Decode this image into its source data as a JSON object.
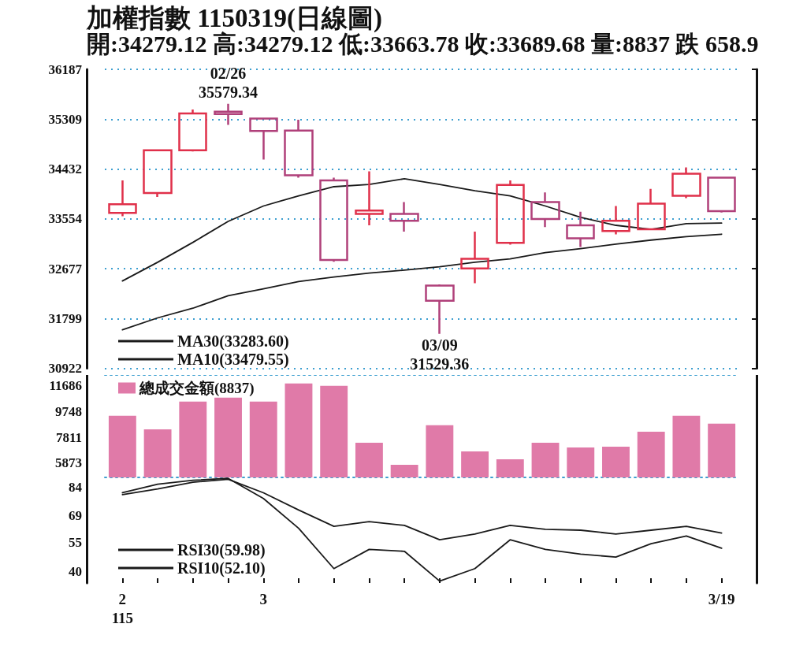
{
  "chart_data": [
    {
      "type": "candlestick",
      "title": "加權指數 1150319(日線圖)",
      "subtitle": "開:34279.12 高:34279.12 低:33663.78 收:33689.68 量:8837 跌 658.9",
      "categories": [
        null,
        null,
        null,
        null,
        null,
        null,
        null,
        null,
        null,
        null,
        null,
        null,
        null,
        null,
        null,
        null,
        null,
        null
      ],
      "ohlc": [
        [
          33660,
          34230,
          33600,
          33810
        ],
        [
          34010,
          34770,
          33940,
          34760
        ],
        [
          34760,
          35480,
          34740,
          35410
        ],
        [
          35440,
          35579.34,
          35210,
          35400
        ],
        [
          35320,
          35330,
          34600,
          35100
        ],
        [
          35110,
          35300,
          34280,
          34320
        ],
        [
          34230,
          34280,
          32800,
          32830
        ],
        [
          33640,
          34390,
          33440,
          33700
        ],
        [
          33640,
          33850,
          33330,
          33520
        ],
        [
          32380,
          32400,
          31529.36,
          32110
        ],
        [
          32680,
          33330,
          32420,
          32850
        ],
        [
          33130,
          34230,
          33100,
          34150
        ],
        [
          33850,
          34020,
          33410,
          33550
        ],
        [
          33440,
          33680,
          33060,
          33210
        ],
        [
          33340,
          33780,
          33280,
          33520
        ],
        [
          33370,
          34080,
          33370,
          33820
        ],
        [
          33960,
          34460,
          33920,
          34348.58
        ],
        [
          34279.12,
          34279.12,
          33663.78,
          33689.68
        ]
      ],
      "colors": [
        "#e0304a",
        "#e0304a",
        "#e0304a",
        "#b0407a",
        "#b0407a",
        "#b0407a",
        "#b0407a",
        "#e0304a",
        "#b0407a",
        "#b0407a",
        "#e0304a",
        "#e0304a",
        "#b0407a",
        "#b0407a",
        "#e0304a",
        "#e0304a",
        "#e0304a",
        "#b0407a"
      ],
      "series": [
        {
          "name": "MA30(33283.60)",
          "type": "line",
          "color": "#1a1a1a",
          "values": [
            31600,
            31810,
            31980,
            32200,
            32320,
            32450,
            32530,
            32600,
            32650,
            32710,
            32790,
            32850,
            32960,
            33030,
            33110,
            33180,
            33240,
            33283.6
          ]
        },
        {
          "name": "MA10(33479.55)",
          "type": "line",
          "color": "#1a1a1a",
          "values": [
            32460,
            32790,
            33140,
            33510,
            33780,
            33960,
            34120,
            34160,
            34260,
            34160,
            34050,
            33960,
            33780,
            33580,
            33440,
            33370,
            33470,
            33479.55
          ]
        }
      ],
      "ylim": [
        30922,
        36187
      ],
      "yticks": [
        30922,
        31799,
        32677,
        33554,
        34432,
        35309,
        36187
      ],
      "grid": "y",
      "legend": "bottom left",
      "marker": "none",
      "tick_labels": "y",
      "annotations": [
        {
          "text": "02/26",
          "y": 35579.34
        },
        {
          "text": "35579.34",
          "y": 35579.34
        },
        {
          "text": "03/09",
          "y": 31529.36
        },
        {
          "text": "31529.36",
          "y": 31529.36
        }
      ]
    },
    {
      "type": "bar",
      "categories": [
        null,
        null,
        null,
        null,
        null,
        null,
        null,
        null,
        null,
        null,
        null,
        null,
        null,
        null,
        null,
        null,
        null,
        null
      ],
      "series": [
        {
          "name": "總成交金額(8837)",
          "color": "#e07aa8",
          "values": [
            9430,
            8420,
            10500,
            10800,
            10500,
            11860,
            11690,
            7410,
            5750,
            8720,
            6760,
            6160,
            7410,
            7050,
            7110,
            8240,
            9430,
            8837
          ]
        }
      ],
      "ylim": [
        4800,
        12500
      ],
      "yticks": [
        5873,
        7811,
        9748,
        11686
      ],
      "legend": "top left",
      "tick_labels": "y"
    },
    {
      "type": "line",
      "categories": [
        "2\n115",
        null,
        null,
        null,
        "3",
        null,
        null,
        null,
        null,
        null,
        null,
        null,
        null,
        null,
        null,
        null,
        null,
        "3/19"
      ],
      "series": [
        {
          "name": "RSI30(59.98)",
          "color": "#1a1a1a",
          "values": [
            80,
            83,
            86.5,
            88,
            81,
            72,
            63.5,
            66,
            64,
            56.5,
            59.5,
            64,
            62,
            61.5,
            59.5,
            61.5,
            63.5,
            59.98
          ]
        },
        {
          "name": "RSI10(52.10)",
          "color": "#1a1a1a",
          "values": [
            81,
            85.5,
            87.5,
            88.5,
            78,
            62.5,
            41.5,
            51.5,
            50.5,
            35,
            41.5,
            56.5,
            51.5,
            49,
            47.5,
            54.5,
            58.5,
            52.1
          ]
        }
      ],
      "ylim": [
        34,
        89
      ],
      "yticks": [
        40,
        55,
        69,
        84
      ],
      "legend": "bottom left",
      "marker": "none"
    }
  ]
}
